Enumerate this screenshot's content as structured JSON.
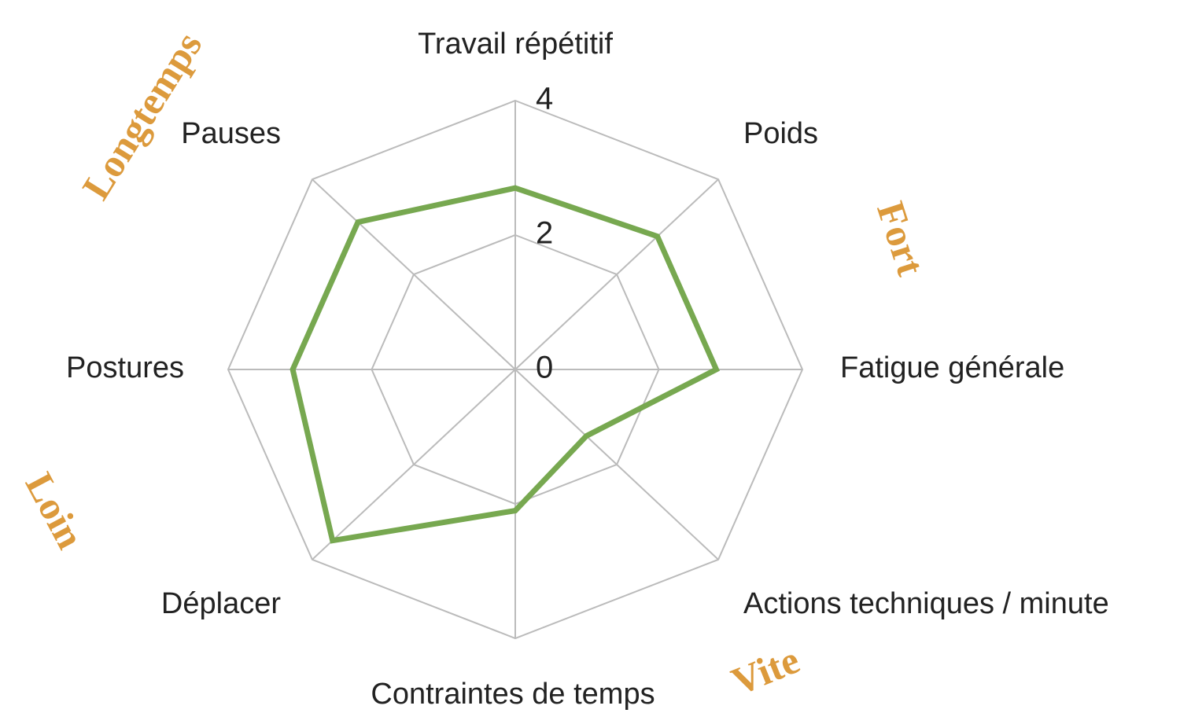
{
  "chart_data": {
    "type": "radar",
    "categories": [
      "Travail répétitif",
      "Poids",
      "Fatigue générale",
      "Actions techniques / minute",
      "Contraintes de temps",
      "Déplacer",
      "Postures",
      "Pauses"
    ],
    "series": [
      {
        "color": "#77a850",
        "values": [
          2.7,
          2.8,
          2.8,
          1.4,
          2.1,
          3.6,
          3.1,
          3.1
        ]
      }
    ],
    "ylim": [
      0,
      4
    ],
    "yticks": [
      0,
      2,
      4
    ],
    "grid": true,
    "annotations": [
      "Longtemps",
      "Fort",
      "Loin",
      "Vite"
    ]
  }
}
